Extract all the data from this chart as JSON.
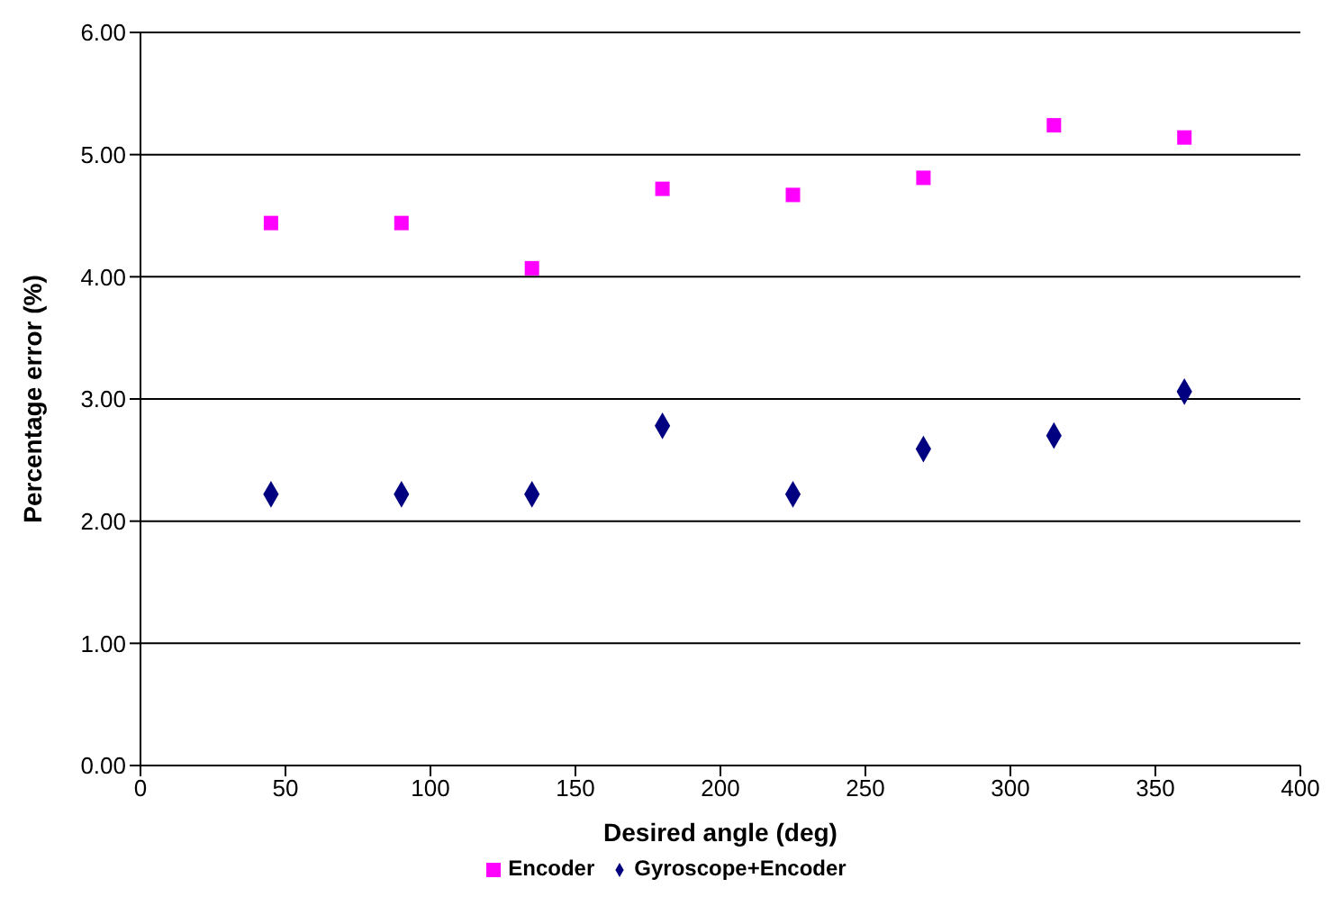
{
  "chart_data": {
    "type": "scatter",
    "xlabel": "Desired angle (deg)",
    "ylabel": "Percentage error (%)",
    "x": [
      45,
      90,
      135,
      180,
      225,
      270,
      315,
      360
    ],
    "series": [
      {
        "name": "Gyroscope+Encoder",
        "color": "#000080",
        "marker": "diamond",
        "values": [
          2.22,
          2.22,
          2.22,
          2.78,
          2.22,
          2.59,
          2.7,
          3.06
        ]
      },
      {
        "name": "Encoder",
        "color": "#ff00ff",
        "marker": "square",
        "values": [
          4.44,
          4.44,
          4.07,
          4.72,
          4.67,
          4.81,
          5.24,
          5.14
        ]
      }
    ],
    "xlim": [
      0,
      400
    ],
    "xticks": [
      0,
      50,
      100,
      150,
      200,
      250,
      300,
      350,
      400
    ],
    "ylim": [
      0,
      6
    ],
    "yticks": [
      {
        "value": 0,
        "label": "0.00"
      },
      {
        "value": 1,
        "label": "1.00"
      },
      {
        "value": 2,
        "label": "2.00"
      },
      {
        "value": 3,
        "label": "3.00"
      },
      {
        "value": 4,
        "label": "4.00"
      },
      {
        "value": 5,
        "label": "5.00"
      },
      {
        "value": 6,
        "label": "6.00"
      }
    ],
    "grid": "y",
    "legend": "bottom"
  }
}
